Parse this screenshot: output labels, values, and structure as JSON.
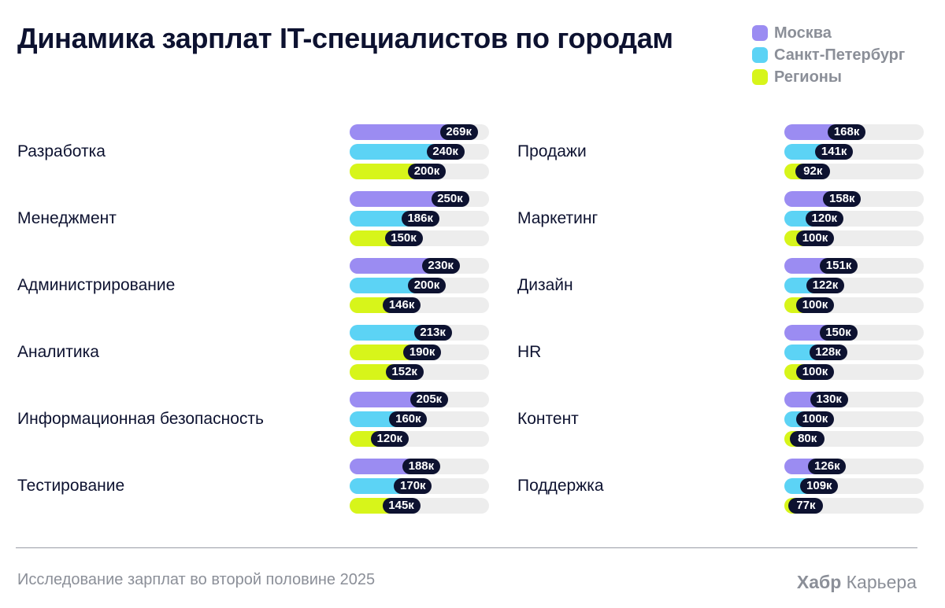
{
  "title": "Динамика зарплат IT-специалистов по городам",
  "legend": [
    {
      "label": "Москва",
      "color": "#9b8cf2"
    },
    {
      "label": "Санкт-Петербург",
      "color": "#5cd3f5"
    },
    {
      "label": "Регионы",
      "color": "#d7f51a"
    }
  ],
  "chart_data": {
    "type": "bar",
    "orientation": "horizontal",
    "unit_suffix": "к",
    "xlim": [
      0,
      300
    ],
    "series_colors": {
      "Москва": "#9b8cf2",
      "Санкт-Петербург": "#5cd3f5",
      "Регионы": "#d7f51a"
    },
    "panels": [
      {
        "categories": [
          {
            "label": "Разработка",
            "bars": [
              {
                "series": "Москва",
                "value": 269
              },
              {
                "series": "Санкт-Петербург",
                "value": 240
              },
              {
                "series": "Регионы",
                "value": 200
              }
            ]
          },
          {
            "label": "Менеджмент",
            "bars": [
              {
                "series": "Москва",
                "value": 250
              },
              {
                "series": "Санкт-Петербург",
                "value": 186
              },
              {
                "series": "Регионы",
                "value": 150
              }
            ]
          },
          {
            "label": "Администрирование",
            "bars": [
              {
                "series": "Москва",
                "value": 230
              },
              {
                "series": "Санкт-Петербург",
                "value": 200
              },
              {
                "series": "Регионы",
                "value": 146
              }
            ]
          },
          {
            "label": "Аналитика",
            "bars": [
              {
                "series": "Санкт-Петербург",
                "value": 213
              },
              {
                "series": "Регионы",
                "value": 190
              },
              {
                "series": "Регионы",
                "value": 152
              }
            ]
          },
          {
            "label": "Информационная безопасность",
            "bars": [
              {
                "series": "Москва",
                "value": 205
              },
              {
                "series": "Санкт-Петербург",
                "value": 160
              },
              {
                "series": "Регионы",
                "value": 120
              }
            ]
          },
          {
            "label": "Тестирование",
            "bars": [
              {
                "series": "Москва",
                "value": 188
              },
              {
                "series": "Санкт-Петербург",
                "value": 170
              },
              {
                "series": "Регионы",
                "value": 145
              }
            ]
          }
        ]
      },
      {
        "categories": [
          {
            "label": "Продажи",
            "bars": [
              {
                "series": "Москва",
                "value": 168
              },
              {
                "series": "Санкт-Петербург",
                "value": 141
              },
              {
                "series": "Регионы",
                "value": 92
              }
            ]
          },
          {
            "label": "Маркетинг",
            "bars": [
              {
                "series": "Москва",
                "value": 158
              },
              {
                "series": "Санкт-Петербург",
                "value": 120
              },
              {
                "series": "Регионы",
                "value": 100
              }
            ]
          },
          {
            "label": "Дизайн",
            "bars": [
              {
                "series": "Москва",
                "value": 151
              },
              {
                "series": "Санкт-Петербург",
                "value": 122
              },
              {
                "series": "Регионы",
                "value": 100
              }
            ]
          },
          {
            "label": "HR",
            "bars": [
              {
                "series": "Москва",
                "value": 150
              },
              {
                "series": "Санкт-Петербург",
                "value": 128
              },
              {
                "series": "Регионы",
                "value": 100
              }
            ]
          },
          {
            "label": "Контент",
            "bars": [
              {
                "series": "Москва",
                "value": 130
              },
              {
                "series": "Санкт-Петербург",
                "value": 100
              },
              {
                "series": "Регионы",
                "value": 80
              }
            ]
          },
          {
            "label": "Поддержка",
            "bars": [
              {
                "series": "Москва",
                "value": 126
              },
              {
                "series": "Санкт-Петербург",
                "value": 109
              },
              {
                "series": "Регионы",
                "value": 77
              }
            ]
          }
        ]
      }
    ]
  },
  "footer": {
    "note": "Исследование зарплат во второй половине 2025",
    "brand_bold": "Хабр",
    "brand_rest": "Карьера"
  }
}
